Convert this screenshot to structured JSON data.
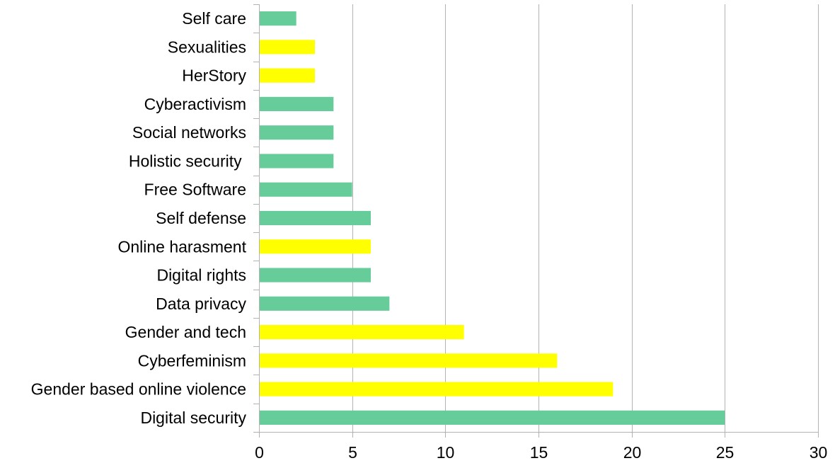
{
  "chart_data": {
    "type": "bar",
    "orientation": "horizontal",
    "categories": [
      "Self care",
      "Sexualities",
      "HerStory",
      "Cyberactivism",
      "Social networks",
      "Holistic security ",
      "Free Software",
      "Self defense",
      "Online harasment",
      "Digital rights",
      "Data privacy",
      "Gender and tech",
      "Cyberfeminism",
      "Gender based online violence",
      "Digital security"
    ],
    "values": [
      2,
      3,
      3,
      4,
      4,
      4,
      5,
      6,
      6,
      6,
      7,
      11,
      16,
      19,
      25
    ],
    "bar_colors": [
      "#66cc99",
      "#ffff00",
      "#ffff00",
      "#66cc99",
      "#66cc99",
      "#66cc99",
      "#66cc99",
      "#66cc99",
      "#ffff00",
      "#66cc99",
      "#66cc99",
      "#ffff00",
      "#ffff00",
      "#ffff00",
      "#66cc99"
    ],
    "xlim": [
      0,
      30
    ],
    "xticks": [
      0,
      5,
      10,
      15,
      20,
      25,
      30
    ],
    "grid": true,
    "title": "",
    "xlabel": "",
    "ylabel": ""
  }
}
